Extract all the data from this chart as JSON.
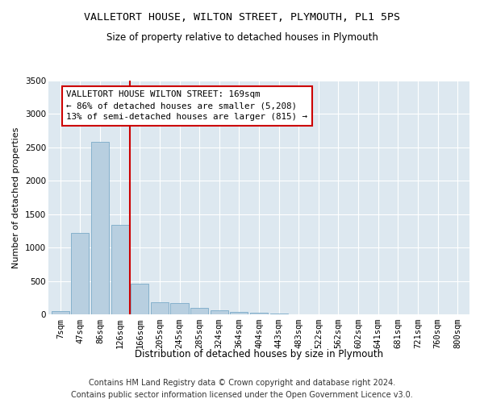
{
  "title1": "VALLETORT HOUSE, WILTON STREET, PLYMOUTH, PL1 5PS",
  "title2": "Size of property relative to detached houses in Plymouth",
  "xlabel": "Distribution of detached houses by size in Plymouth",
  "ylabel": "Number of detached properties",
  "categories": [
    "7sqm",
    "47sqm",
    "86sqm",
    "126sqm",
    "166sqm",
    "205sqm",
    "245sqm",
    "285sqm",
    "324sqm",
    "364sqm",
    "404sqm",
    "443sqm",
    "483sqm",
    "522sqm",
    "562sqm",
    "602sqm",
    "641sqm",
    "681sqm",
    "721sqm",
    "760sqm",
    "800sqm"
  ],
  "values": [
    50,
    1220,
    2580,
    1340,
    460,
    185,
    175,
    100,
    55,
    35,
    25,
    10,
    5,
    0,
    0,
    0,
    0,
    0,
    0,
    0,
    0
  ],
  "bar_color": "#b8cfe0",
  "bar_edge_color": "#7aaac8",
  "vline_x": 3.5,
  "vline_color": "#cc0000",
  "annotation_text": "VALLETORT HOUSE WILTON STREET: 169sqm\n← 86% of detached houses are smaller (5,208)\n13% of semi-detached houses are larger (815) →",
  "annotation_box_color": "#ffffff",
  "annotation_box_edge": "#cc0000",
  "ylim": [
    0,
    3500
  ],
  "yticks": [
    0,
    500,
    1000,
    1500,
    2000,
    2500,
    3000,
    3500
  ],
  "bg_color": "#dde8f0",
  "footer1": "Contains HM Land Registry data © Crown copyright and database right 2024.",
  "footer2": "Contains public sector information licensed under the Open Government Licence v3.0.",
  "title1_fontsize": 9.5,
  "title2_fontsize": 8.5,
  "xlabel_fontsize": 8.5,
  "ylabel_fontsize": 8,
  "tick_fontsize": 7.5,
  "annotation_fontsize": 7.8,
  "footer_fontsize": 7
}
